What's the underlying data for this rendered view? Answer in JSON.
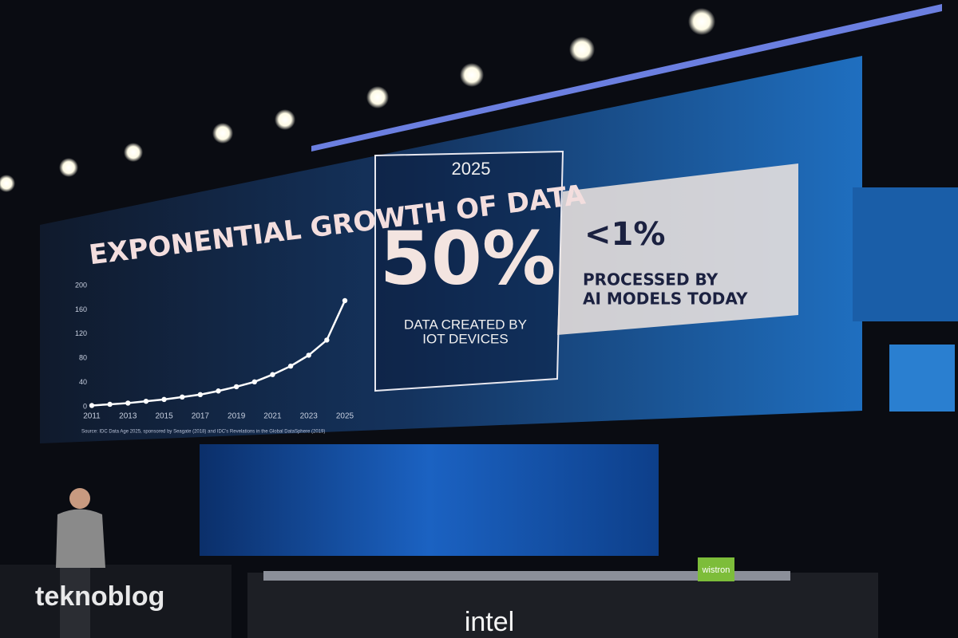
{
  "screen": {
    "title": "EXPONENTIAL GROWTH OF DATA",
    "source": "Source: IDC Data Age 2025, sponsored by Seagate (2018) and IDC's Revelations in the Global DataSphere (2019)",
    "year": "2025",
    "big_stat": "50%",
    "big_stat_lines": [
      "DATA CREATED BY",
      "IOT DEVICES"
    ],
    "small_stat": "<1%",
    "small_stat_lines": [
      "PROCESSED BY",
      "AI MODELS TODAY"
    ]
  },
  "chart_data": {
    "type": "line",
    "x": [
      2011,
      2012,
      2013,
      2014,
      2015,
      2016,
      2017,
      2018,
      2019,
      2020,
      2021,
      2022,
      2023,
      2024,
      2025
    ],
    "values": [
      2,
      4,
      6,
      9,
      12,
      16,
      20,
      26,
      33,
      41,
      53,
      67,
      85,
      110,
      175
    ],
    "color": "#ffffff",
    "xlim": [
      2011,
      2025
    ],
    "xticks": [
      2011,
      2013,
      2015,
      2017,
      2019,
      2021,
      2023,
      2025
    ],
    "ylim": [
      0,
      200
    ],
    "yticks": [
      0,
      40,
      80,
      120,
      160,
      200
    ]
  },
  "stage": {
    "watermark": "teknoblog",
    "logo": "intel",
    "sign": "wistron"
  }
}
